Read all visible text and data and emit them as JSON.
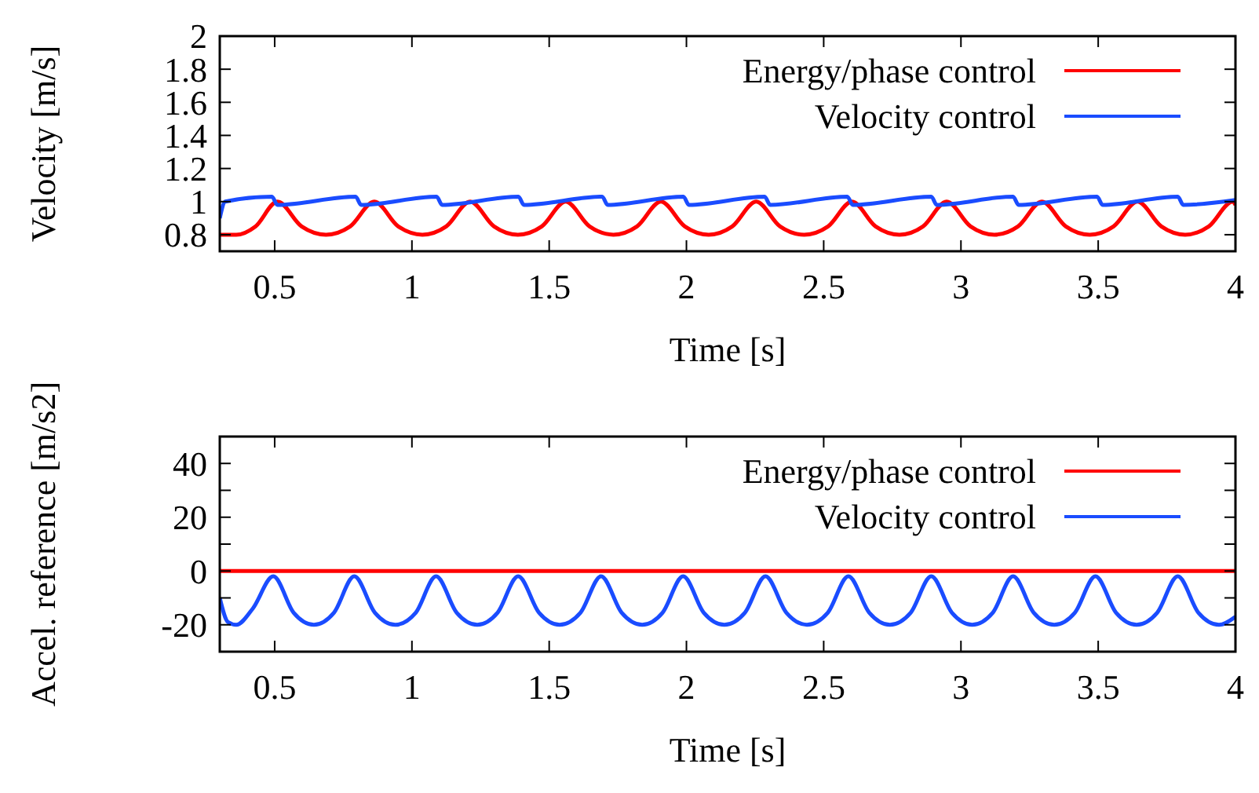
{
  "chart_data": [
    {
      "type": "line",
      "xlabel": "Time [s]",
      "ylabel": "Velocity [m/s]",
      "legend": "top right",
      "xlim": [
        0.3,
        4
      ],
      "ylim": [
        0.7,
        2
      ],
      "xticks": [
        0.5,
        1,
        1.5,
        2,
        2.5,
        3,
        3.5,
        4
      ],
      "yticks": [
        0.8,
        1,
        1.2,
        1.4,
        1.6,
        1.8,
        2
      ],
      "series": [
        {
          "name": "Energy/phase control",
          "color": "#ff0000",
          "x": [
            0.3,
            0.36,
            0.43,
            0.51,
            0.598,
            0.687,
            0.775,
            0.863,
            0.95,
            1.038,
            1.125,
            1.212,
            1.299,
            1.386,
            1.473,
            1.56,
            1.647,
            1.734,
            1.82,
            1.907,
            1.994,
            2.081,
            2.167,
            2.254,
            2.341,
            2.429,
            2.516,
            2.603,
            2.689,
            2.776,
            2.862,
            2.948,
            3.035,
            3.122,
            3.208,
            3.295,
            3.382,
            3.469,
            3.556,
            3.643,
            3.73,
            3.817,
            3.903,
            3.99,
            4
          ],
          "values": [
            0.8,
            0.8,
            0.85,
            1,
            0.85,
            0.8,
            0.85,
            1,
            0.85,
            0.8,
            0.85,
            1,
            0.85,
            0.8,
            0.85,
            1,
            0.85,
            0.8,
            0.85,
            1,
            0.85,
            0.8,
            0.85,
            1,
            0.85,
            0.8,
            0.85,
            1,
            0.85,
            0.8,
            0.85,
            1,
            0.85,
            0.8,
            0.85,
            1,
            0.85,
            0.8,
            0.85,
            1,
            0.85,
            0.8,
            0.85,
            1,
            0.98
          ]
        },
        {
          "name": "Velocity control",
          "color": "#1a4cff",
          "x": [
            0.3,
            0.32,
            0.49,
            0.51,
            0.795,
            0.815,
            1.09,
            1.11,
            1.388,
            1.408,
            1.693,
            1.713,
            1.989,
            2.009,
            2.285,
            2.305,
            2.586,
            2.606,
            2.892,
            2.912,
            3.19,
            3.21,
            3.496,
            3.516,
            3.79,
            3.81,
            4
          ],
          "values": [
            0.9,
            1,
            1.03,
            0.98,
            1.03,
            0.98,
            1.03,
            0.98,
            1.03,
            0.98,
            1.03,
            0.98,
            1.03,
            0.98,
            1.03,
            0.98,
            1.03,
            0.98,
            1.03,
            0.98,
            1.03,
            0.98,
            1.03,
            0.98,
            1.03,
            0.98,
            1.01
          ]
        }
      ]
    },
    {
      "type": "line",
      "xlabel": "Time [s]",
      "ylabel": "Accel. reference [m/s2]",
      "legend": "top right",
      "xlim": [
        0.3,
        4
      ],
      "ylim": [
        -30,
        50
      ],
      "xticks": [
        0.5,
        1,
        1.5,
        2,
        2.5,
        3,
        3.5,
        4
      ],
      "yticks": [
        -20,
        {
          "value": -10,
          "label": null
        },
        0,
        {
          "value": 10,
          "label": null
        },
        20,
        {
          "value": 30,
          "label": null
        },
        40
      ],
      "series": [
        {
          "name": "Energy/phase control",
          "color": "#ff0000",
          "x": [
            0.3,
            4
          ],
          "values": [
            0,
            0
          ]
        },
        {
          "name": "Velocity control",
          "color": "#1a4cff",
          "x": [
            0.3,
            0.33,
            0.36,
            0.42,
            0.495,
            0.569,
            0.643,
            0.716,
            0.79,
            0.865,
            0.939,
            1.014,
            1.088,
            1.163,
            1.238,
            1.312,
            1.387,
            1.463,
            1.538,
            1.614,
            1.689,
            1.764,
            1.839,
            1.913,
            1.988,
            2.063,
            2.138,
            2.213,
            2.288,
            2.364,
            2.439,
            2.515,
            2.59,
            2.666,
            2.741,
            2.817,
            2.892,
            2.967,
            3.041,
            3.116,
            3.19,
            3.265,
            3.34,
            3.415,
            3.49,
            3.565,
            3.64,
            3.715,
            3.79,
            3.865,
            3.94,
            4
          ],
          "values": [
            -10,
            -19,
            -20,
            -14,
            -2,
            -15.5,
            -20,
            -15.5,
            -2,
            -15.5,
            -20,
            -15.5,
            -2,
            -15.5,
            -20,
            -15.5,
            -2,
            -15.5,
            -20,
            -15.5,
            -2,
            -15.5,
            -20,
            -15.5,
            -2,
            -15.5,
            -20,
            -15.5,
            -2,
            -15.5,
            -20,
            -15.5,
            -2,
            -15.5,
            -20,
            -15.5,
            -2,
            -15.5,
            -20,
            -15.5,
            -2,
            -15.5,
            -20,
            -15.5,
            -2,
            -15.5,
            -20,
            -15.5,
            -2,
            -15.5,
            -20,
            -17
          ]
        }
      ]
    }
  ]
}
